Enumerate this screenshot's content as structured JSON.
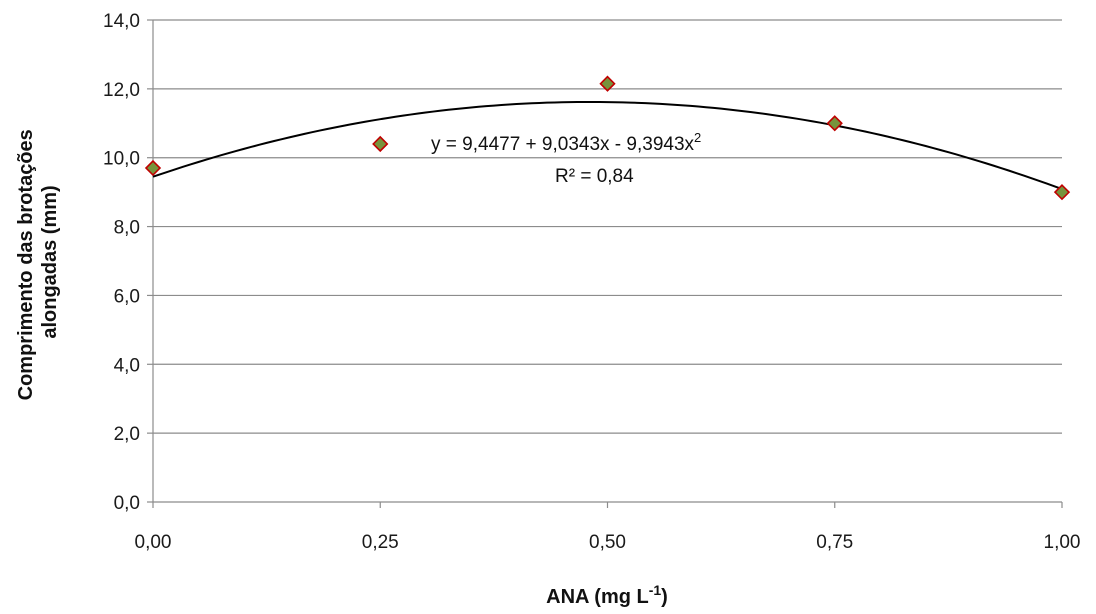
{
  "chart_data": {
    "type": "scatter",
    "x": [
      0.0,
      0.25,
      0.5,
      0.75,
      1.0
    ],
    "y": [
      9.7,
      10.4,
      12.15,
      11.0,
      9.0
    ],
    "xticks": [
      0.0,
      0.25,
      0.5,
      0.75,
      1.0
    ],
    "xtick_labels": [
      "0,00",
      "0,25",
      "0,50",
      "0,75",
      "1,00"
    ],
    "yticks": [
      0,
      2,
      4,
      6,
      8,
      10,
      12,
      14
    ],
    "ytick_labels": [
      "0,0",
      "2,0",
      "4,0",
      "6,0",
      "8,0",
      "10,0",
      "12,0",
      "14,0"
    ],
    "xlim": [
      0,
      1
    ],
    "ylim": [
      0,
      14
    ],
    "xlabel": {
      "main": "ANA (mg L",
      "sup": "-1",
      "end": ")"
    },
    "ylabel": {
      "line1": "Comprimento das brotações",
      "line2": "alongadas (mm)"
    },
    "grid": "horizontal",
    "trendline": {
      "type": "polynomial",
      "coefficients": [
        9.4477,
        9.0343,
        -9.3943
      ],
      "equation_main": "y = 9,4477 + 9,0343x  - 9,3943x",
      "equation_sup": "2",
      "r_squared": "R² = 0,84"
    },
    "colors": {
      "marker_fill": "#77933C",
      "marker_stroke": "#C00000",
      "trendline": "#000000",
      "grid": "#8c8c8c"
    }
  }
}
